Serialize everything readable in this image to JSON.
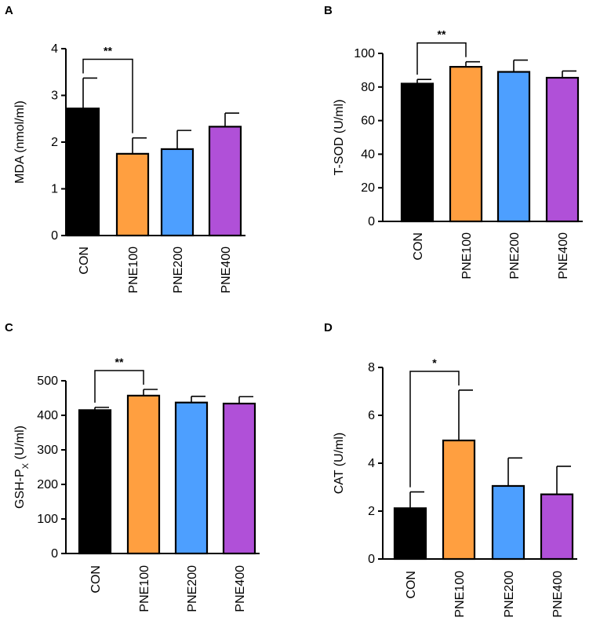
{
  "figure": {
    "caption": ""
  },
  "chart_data": [
    {
      "panel": "A",
      "type": "bar",
      "ylabel": "MDA (nmol/ml)",
      "ylabel_sub": "",
      "ylabel_end": "",
      "categories": [
        "CON",
        "PNE100",
        "PNE200",
        "PNE400"
      ],
      "values": [
        2.72,
        1.75,
        1.85,
        2.33
      ],
      "errors": [
        0.65,
        0.34,
        0.4,
        0.29
      ],
      "colors": [
        "#000000",
        "#ff9f40",
        "#4d9fff",
        "#b050d8"
      ],
      "ylim": [
        0,
        4
      ],
      "yticks": [
        "0",
        "1",
        "2",
        "3",
        "4"
      ],
      "significance": {
        "from": "CON",
        "to": "PNE100",
        "label": "**"
      }
    },
    {
      "panel": "B",
      "type": "bar",
      "ylabel": "T-SOD (U/ml)",
      "ylabel_sub": "",
      "ylabel_end": "",
      "categories": [
        "CON",
        "PNE100",
        "PNE200",
        "PNE400"
      ],
      "values": [
        82,
        92,
        89,
        85.5
      ],
      "errors": [
        2.5,
        3,
        7,
        4
      ],
      "colors": [
        "#000000",
        "#ff9f40",
        "#4d9fff",
        "#b050d8"
      ],
      "ylim": [
        0,
        100
      ],
      "yticks": [
        "0",
        "20",
        "40",
        "60",
        "80",
        "100"
      ],
      "significance": {
        "from": "CON",
        "to": "PNE100",
        "label": "**"
      }
    },
    {
      "panel": "C",
      "type": "bar",
      "ylabel": "GSH-P",
      "ylabel_sub": "X",
      "ylabel_end": " (U/ml)",
      "categories": [
        "CON",
        "PNE100",
        "PNE200",
        "PNE400"
      ],
      "values": [
        415,
        457,
        437,
        434
      ],
      "errors": [
        8,
        18,
        18,
        20
      ],
      "colors": [
        "#000000",
        "#ff9f40",
        "#4d9fff",
        "#b050d8"
      ],
      "ylim": [
        0,
        500
      ],
      "yticks": [
        "0",
        "100",
        "200",
        "300",
        "400",
        "500"
      ],
      "significance": {
        "from": "CON",
        "to": "PNE100",
        "label": "**"
      }
    },
    {
      "panel": "D",
      "type": "bar",
      "ylabel": "CAT (U/ml)",
      "ylabel_sub": "",
      "ylabel_end": "",
      "categories": [
        "CON",
        "PNE100",
        "PNE200",
        "PNE400"
      ],
      "values": [
        2.12,
        4.95,
        3.05,
        2.7
      ],
      "errors": [
        0.68,
        2.1,
        1.17,
        1.17
      ],
      "colors": [
        "#000000",
        "#ff9f40",
        "#4d9fff",
        "#b050d8"
      ],
      "ylim": [
        0,
        8
      ],
      "yticks": [
        "0",
        "2",
        "4",
        "6",
        "8"
      ],
      "significance": {
        "from": "CON",
        "to": "PNE100",
        "label": "*"
      }
    }
  ]
}
